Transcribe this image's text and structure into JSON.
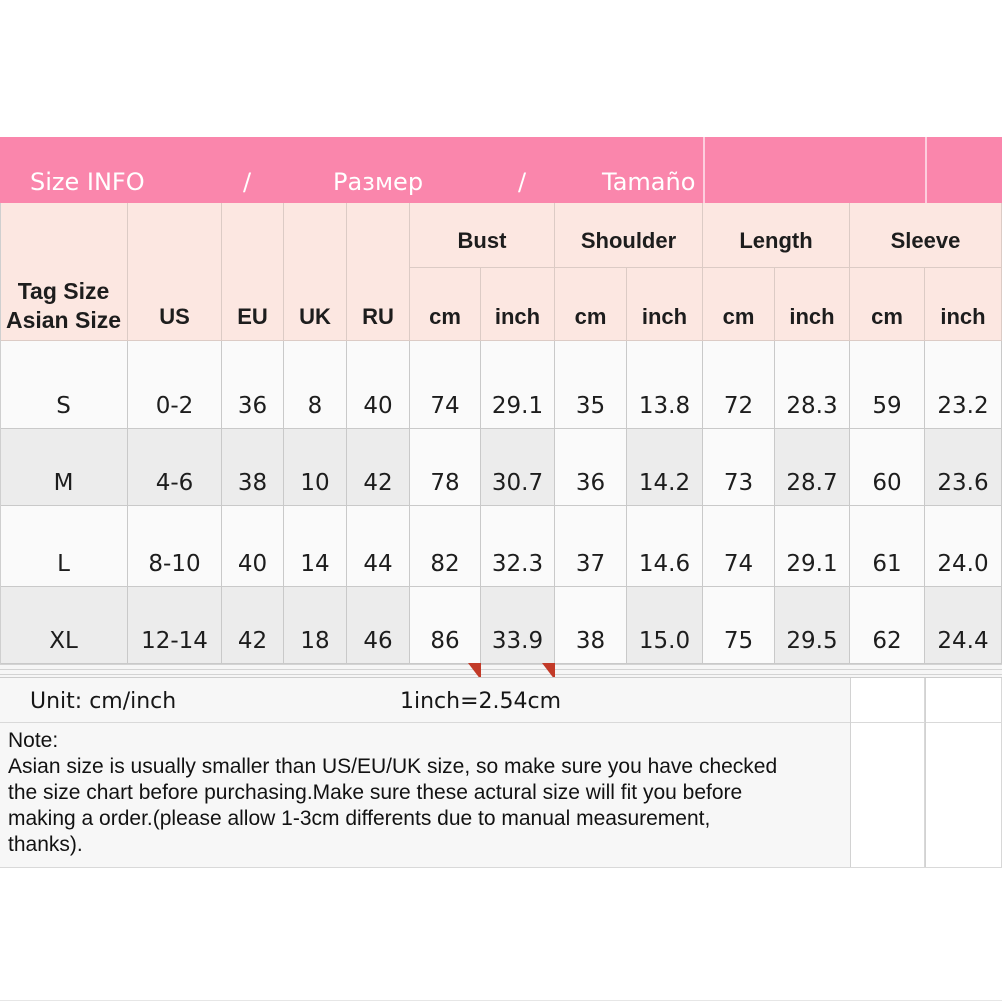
{
  "title_band": {
    "segments": [
      "Size INFO",
      "/",
      "Размер",
      "/",
      "Tamaño"
    ]
  },
  "table": {
    "corner": {
      "line1": "Tag Size",
      "line2": "Asian Size"
    },
    "size_system_headers": [
      "US",
      "EU",
      "UK",
      "RU"
    ],
    "measure_headers": [
      {
        "label": "Bust",
        "units": [
          "cm",
          "inch"
        ]
      },
      {
        "label": "Shoulder",
        "units": [
          "cm",
          "inch"
        ]
      },
      {
        "label": "Length",
        "units": [
          "cm",
          "inch"
        ]
      },
      {
        "label": "Sleeve",
        "units": [
          "cm",
          "inch"
        ]
      }
    ],
    "rows": [
      {
        "tag": "S",
        "cells": [
          "0-2",
          "36",
          "8",
          "40",
          "74",
          "29.1",
          "35",
          "13.8",
          "72",
          "28.3",
          "59",
          "23.2"
        ]
      },
      {
        "tag": "M",
        "cells": [
          "4-6",
          "38",
          "10",
          "42",
          "78",
          "30.7",
          "36",
          "14.2",
          "73",
          "28.7",
          "60",
          "23.6"
        ]
      },
      {
        "tag": "L",
        "cells": [
          "8-10",
          "40",
          "14",
          "44",
          "82",
          "32.3",
          "37",
          "14.6",
          "74",
          "29.1",
          "61",
          "24.0"
        ]
      },
      {
        "tag": "XL",
        "cells": [
          "12-14",
          "42",
          "18",
          "46",
          "86",
          "33.9",
          "38",
          "15.0",
          "75",
          "29.5",
          "62",
          "24.4"
        ]
      }
    ]
  },
  "unit_bar": {
    "label": "Unit: cm/inch",
    "conversion": "1inch=2.54cm"
  },
  "note": {
    "lines": [
      "Note:",
      "Asian size is usually smaller than US/EU/UK size, so make sure you have checked",
      "the size chart before purchasing.Make sure these actural size will fit you before",
      "making a order.(please allow 1-3cm differents due to manual measurement,",
      "thanks)."
    ]
  },
  "colors": {
    "banner_pink": "#FA86AC",
    "banner_text": "#FFFFFF",
    "header_pink": "#FCE7E1",
    "header_line": "#DCCBC5",
    "row_white": "#FAFAFA",
    "row_gray": "#ECECEC",
    "grid_line": "#C9C9C9",
    "panel_gray": "#F7F7F7",
    "marker_red": "#C23A28",
    "text_dark": "#1D1D1D"
  },
  "chart_data": {
    "type": "table",
    "title": "Size INFO / Размер / Tamaño",
    "columns": [
      "Tag Size Asian Size",
      "US",
      "EU",
      "UK",
      "RU",
      "Bust cm",
      "Bust inch",
      "Shoulder cm",
      "Shoulder inch",
      "Length cm",
      "Length inch",
      "Sleeve cm",
      "Sleeve inch"
    ],
    "rows": [
      [
        "S",
        "0-2",
        "36",
        "8",
        "40",
        "74",
        "29.1",
        "35",
        "13.8",
        "72",
        "28.3",
        "59",
        "23.2"
      ],
      [
        "M",
        "4-6",
        "38",
        "10",
        "42",
        "78",
        "30.7",
        "36",
        "14.2",
        "73",
        "28.7",
        "60",
        "23.6"
      ],
      [
        "L",
        "8-10",
        "40",
        "14",
        "44",
        "82",
        "32.3",
        "37",
        "14.6",
        "74",
        "29.1",
        "61",
        "24.0"
      ],
      [
        "XL",
        "12-14",
        "42",
        "18",
        "46",
        "86",
        "33.9",
        "38",
        "15.0",
        "75",
        "29.5",
        "62",
        "24.4"
      ]
    ],
    "footnotes": [
      "Unit: cm/inch   1inch=2.54cm",
      "Note: Asian size is usually smaller than US/EU/UK size, so make sure you have checked the size chart before purchasing.Make sure these actural size will fit you before making a order.(please allow 1-3cm differents due to manual measurement, thanks)."
    ],
    "legend_position": "none",
    "grid": true
  }
}
